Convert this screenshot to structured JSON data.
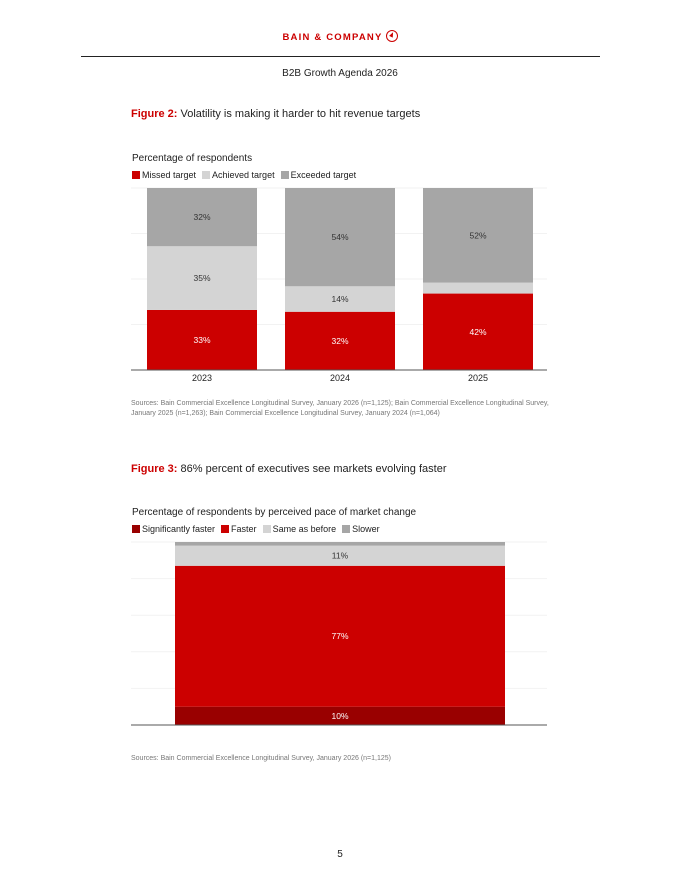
{
  "header": {
    "brand": "BAIN & COMPANY",
    "doc_title": "B2B Growth Agenda 2026"
  },
  "figure2": {
    "num": "Figure 2:",
    "title": "Volatility is making it harder to hit revenue targets",
    "subtitle": "Percentage of respondents",
    "legend": [
      {
        "label": "Missed target",
        "color": "#cc0000"
      },
      {
        "label": "Achieved target",
        "color": "#d4d4d4"
      },
      {
        "label": "Exceeded target",
        "color": "#a6a6a6"
      }
    ],
    "sources": "Sources: Bain Commercial Excellence Longitudinal Survey, January 2026 (n=1,125); Bain Commercial Excellence Longitudinal Survey, January 2025 (n=1,263); Bain Commercial Excellence Longitudinal Survey, January 2024 (n=1,064)"
  },
  "figure3": {
    "num": "Figure 3:",
    "title": "86% percent of executives see markets evolving faster",
    "subtitle": "Percentage of respondents by perceived pace of market change",
    "legend": [
      {
        "label": "Significantly faster",
        "color": "#990000"
      },
      {
        "label": "Faster",
        "color": "#cc0000"
      },
      {
        "label": "Same as before",
        "color": "#d4d4d4"
      },
      {
        "label": "Slower",
        "color": "#a6a6a6"
      }
    ],
    "sources": "Sources: Bain Commercial Excellence Longitudinal Survey, January 2026 (n=1,125)"
  },
  "page_number": "5",
  "chart_data": [
    {
      "type": "bar",
      "stacked": true,
      "title": "Volatility is making it harder to hit revenue targets",
      "ylabel": "Percentage of respondents",
      "categories": [
        "2023",
        "2024",
        "2025"
      ],
      "series": [
        {
          "name": "Missed target",
          "values": [
            33,
            32,
            42
          ],
          "labels": [
            "33%",
            "32%",
            "42%"
          ],
          "color": "#cc0000"
        },
        {
          "name": "Achieved target",
          "values": [
            35,
            14,
            6
          ],
          "labels": [
            "35%",
            "14%",
            "6%"
          ],
          "color": "#d4d4d4"
        },
        {
          "name": "Exceeded target",
          "values": [
            32,
            54,
            52
          ],
          "labels": [
            "32%",
            "54%",
            "52%"
          ],
          "color": "#a6a6a6"
        }
      ],
      "ylim": [
        0,
        100
      ],
      "legend_position": "top-left"
    },
    {
      "type": "bar",
      "stacked": true,
      "title": "86% percent of executives see markets evolving faster",
      "ylabel": "Percentage of respondents by perceived pace of market change",
      "categories": [
        ""
      ],
      "series": [
        {
          "name": "Significantly faster",
          "values": [
            10
          ],
          "labels": [
            "10%"
          ],
          "color": "#990000"
        },
        {
          "name": "Faster",
          "values": [
            77
          ],
          "labels": [
            "77%"
          ],
          "color": "#cc0000"
        },
        {
          "name": "Same as before",
          "values": [
            11
          ],
          "labels": [
            "11%"
          ],
          "color": "#d4d4d4"
        },
        {
          "name": "Slower",
          "values": [
            2
          ],
          "labels": [
            ""
          ],
          "color": "#a6a6a6"
        }
      ],
      "ylim": [
        0,
        100
      ],
      "legend_position": "top-left"
    }
  ]
}
